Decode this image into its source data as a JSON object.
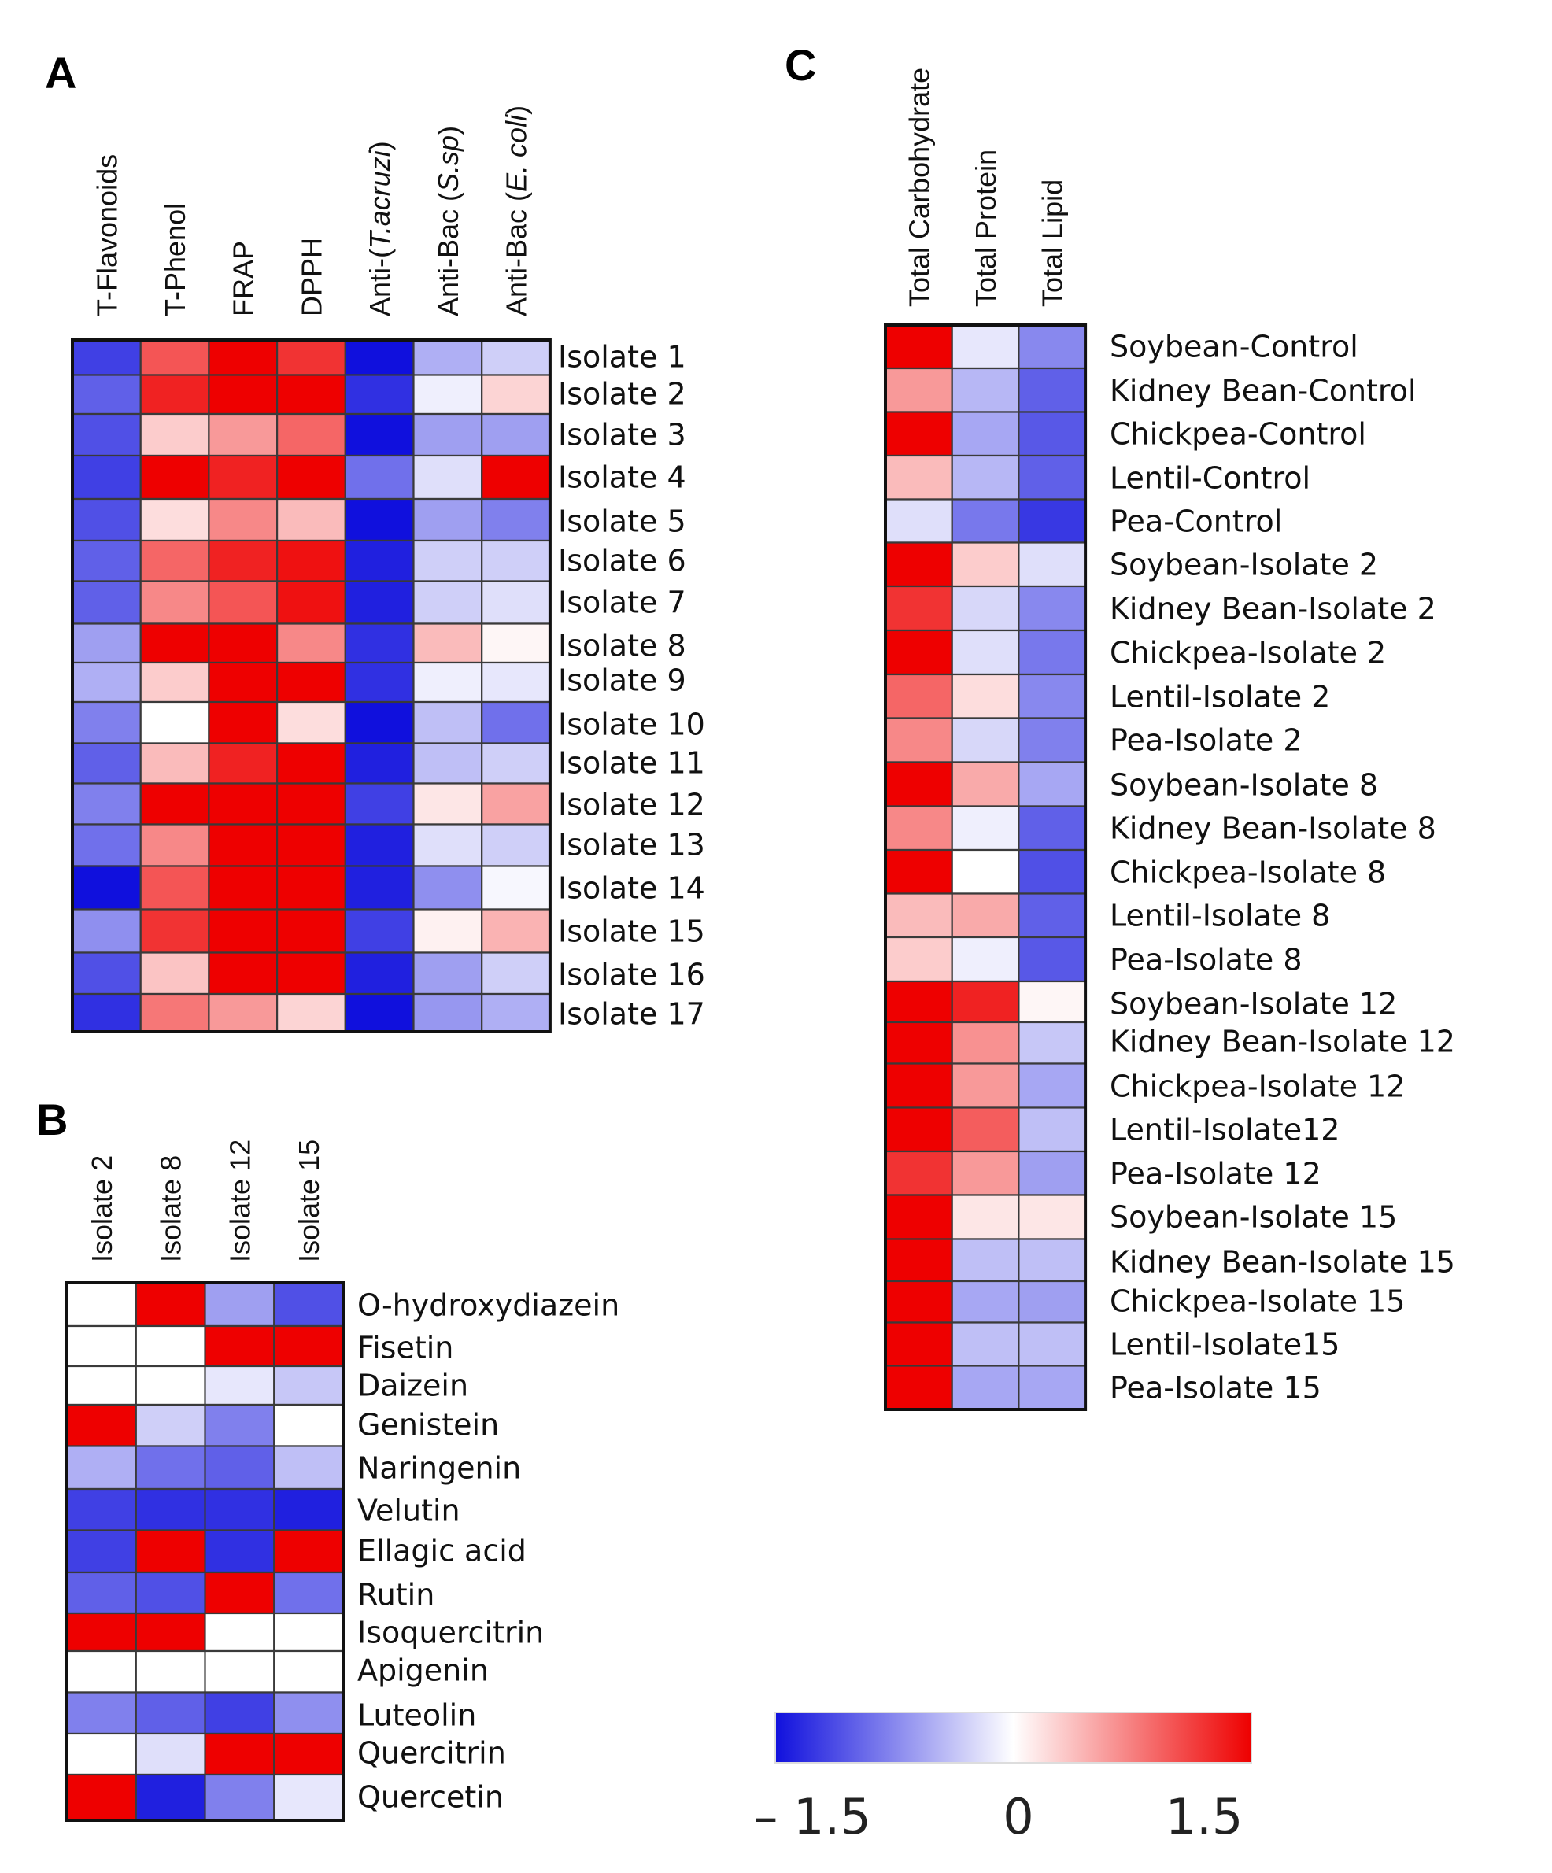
{
  "chart_data": [
    {
      "type": "heatmap",
      "panel": "A",
      "columns": [
        "T-Flavonoids",
        "T-Phenol",
        "FRAP",
        "DPPH",
        "Anti-(T.acruzi)",
        "Anti-Bac (S.sp)",
        "Anti-Bac (E. coli)"
      ],
      "column_labels_rich": [
        [
          {
            "t": "T-Flavonoids",
            "i": false
          }
        ],
        [
          {
            "t": "T-Phenol",
            "i": false
          }
        ],
        [
          {
            "t": "FRAP",
            "i": false
          }
        ],
        [
          {
            "t": "DPPH",
            "i": false
          }
        ],
        [
          {
            "t": "Anti-(",
            "i": false
          },
          {
            "t": "T.acruzi",
            "i": true
          },
          {
            "t": ")",
            "i": false
          }
        ],
        [
          {
            "t": "Anti-Bac (",
            "i": false
          },
          {
            "t": "S.sp",
            "i": true
          },
          {
            "t": ")",
            "i": false
          }
        ],
        [
          {
            "t": "Anti-Bac (",
            "i": false
          },
          {
            "t": "E. coli",
            "i": true
          },
          {
            "t": ")",
            "i": false
          }
        ]
      ],
      "rows": [
        "Isolate 1",
        "Isolate 2",
        "Isolate 3",
        "Isolate 4",
        "Isolate 5",
        "Isolate 6",
        "Isolate 7",
        "Isolate 8",
        "Isolate 9",
        "Isolate 10",
        "Isolate 11",
        "Isolate 12",
        "Isolate 13",
        "Isolate 14",
        "Isolate 15",
        "Isolate 16",
        "Isolate 17"
      ],
      "values": [
        [
          -1.2,
          1.0,
          1.5,
          1.2,
          -1.5,
          -0.5,
          -0.3
        ],
        [
          -1.0,
          1.3,
          1.5,
          1.5,
          -1.3,
          -0.1,
          0.25
        ],
        [
          -1.1,
          0.3,
          0.6,
          0.9,
          -1.5,
          -0.6,
          -0.6
        ],
        [
          -1.2,
          1.5,
          1.3,
          1.5,
          -0.9,
          -0.2,
          1.5
        ],
        [
          -1.1,
          0.2,
          0.7,
          0.4,
          -1.5,
          -0.6,
          -0.8
        ],
        [
          -1.0,
          0.9,
          1.3,
          1.4,
          -1.4,
          -0.3,
          -0.3
        ],
        [
          -1.0,
          0.7,
          1.0,
          1.4,
          -1.4,
          -0.3,
          -0.2
        ],
        [
          -0.6,
          1.5,
          1.5,
          0.7,
          -1.3,
          0.4,
          0.05
        ],
        [
          -0.5,
          0.3,
          1.5,
          1.5,
          -1.3,
          -0.1,
          -0.15
        ],
        [
          -0.8,
          0.0,
          1.5,
          0.2,
          -1.5,
          -0.4,
          -0.9
        ],
        [
          -1.0,
          0.4,
          1.3,
          1.5,
          -1.4,
          -0.4,
          -0.3
        ],
        [
          -0.8,
          1.5,
          1.5,
          1.5,
          -1.2,
          0.15,
          0.55
        ],
        [
          -0.9,
          0.7,
          1.5,
          1.5,
          -1.4,
          -0.2,
          -0.3
        ],
        [
          -1.5,
          1.0,
          1.5,
          1.5,
          -1.4,
          -0.7,
          -0.05
        ],
        [
          -0.7,
          1.2,
          1.5,
          1.5,
          -1.2,
          0.08,
          0.45
        ],
        [
          -1.1,
          0.35,
          1.5,
          1.5,
          -1.4,
          -0.6,
          -0.3
        ],
        [
          -1.3,
          0.8,
          0.6,
          0.25,
          -1.5,
          -0.65,
          -0.5
        ]
      ],
      "color_range": [
        -1.5,
        1.5
      ]
    },
    {
      "type": "heatmap",
      "panel": "B",
      "columns": [
        "Isolate 2",
        "Isolate 8",
        "Isolate 12",
        "Isolate 15"
      ],
      "rows": [
        "O-hydroxydiazein",
        "Fisetin",
        "Daizein",
        "Genistein",
        "Naringenin",
        "Velutin",
        "Ellagic acid",
        "Rutin",
        "Isoquercitrin",
        "Apigenin",
        "Luteolin",
        "Quercitrin",
        "Quercetin"
      ],
      "values": [
        [
          0.0,
          1.5,
          -0.6,
          -1.1
        ],
        [
          0.0,
          0.0,
          1.5,
          1.5
        ],
        [
          0.0,
          0.0,
          -0.15,
          -0.35
        ],
        [
          1.5,
          -0.3,
          -0.8,
          0.0
        ],
        [
          -0.5,
          -0.9,
          -1.0,
          -0.4
        ],
        [
          -1.2,
          -1.3,
          -1.3,
          -1.4
        ],
        [
          -1.2,
          1.5,
          -1.3,
          1.5
        ],
        [
          -1.0,
          -1.1,
          1.5,
          -0.9
        ],
        [
          1.5,
          1.5,
          0.0,
          0.0
        ],
        [
          0.0,
          0.0,
          0.0,
          0.0
        ],
        [
          -0.8,
          -1.0,
          -1.2,
          -0.7
        ],
        [
          0.0,
          -0.2,
          1.5,
          1.5
        ],
        [
          1.5,
          -1.4,
          -0.8,
          -0.15
        ]
      ],
      "color_range": [
        -1.5,
        1.5
      ]
    },
    {
      "type": "heatmap",
      "panel": "C",
      "columns": [
        "Total Carbohydrate",
        "Total Protein",
        "Total Lipid"
      ],
      "rows": [
        "Soybean-Control",
        "Kidney Bean-Control",
        "Chickpea-Control",
        "Lentil-Control",
        "Pea-Control",
        "Soybean-Isolate 2",
        "Kidney Bean-Isolate 2",
        "Chickpea-Isolate 2",
        "Lentil-Isolate 2",
        "Pea-Isolate 2",
        "Soybean-Isolate 8",
        "Kidney Bean-Isolate 8",
        "Chickpea-Isolate 8",
        "Lentil-Isolate 8",
        "Pea-Isolate 8",
        "Soybean-Isolate 12",
        "Kidney Bean-Isolate 12",
        "Chickpea-Isolate 12",
        "Lentil-Isolate12",
        "Pea-Isolate 12",
        "Soybean-Isolate 15",
        "Kidney Bean-Isolate 15",
        "Chickpea-Isolate 15",
        "Lentil-Isolate15",
        "Pea-Isolate 15"
      ],
      "values": [
        [
          1.5,
          -0.15,
          -0.75
        ],
        [
          0.6,
          -0.45,
          -1.0
        ],
        [
          1.5,
          -0.55,
          -1.05
        ],
        [
          0.4,
          -0.45,
          -1.0
        ],
        [
          -0.2,
          -0.85,
          -1.25
        ],
        [
          1.5,
          0.3,
          -0.2
        ],
        [
          1.2,
          -0.25,
          -0.75
        ],
        [
          1.5,
          -0.2,
          -0.85
        ],
        [
          0.9,
          0.2,
          -0.75
        ],
        [
          0.7,
          -0.25,
          -0.8
        ],
        [
          1.5,
          0.5,
          -0.55
        ],
        [
          0.7,
          -0.1,
          -1.0
        ],
        [
          1.5,
          0.0,
          -1.1
        ],
        [
          0.4,
          0.5,
          -1.0
        ],
        [
          0.3,
          -0.1,
          -1.05
        ],
        [
          1.5,
          1.3,
          0.05
        ],
        [
          1.5,
          0.65,
          -0.35
        ],
        [
          1.5,
          0.6,
          -0.55
        ],
        [
          1.5,
          0.95,
          -0.4
        ],
        [
          1.2,
          0.6,
          -0.6
        ],
        [
          1.5,
          0.15,
          0.15
        ],
        [
          1.5,
          -0.4,
          -0.4
        ],
        [
          1.5,
          -0.55,
          -0.6
        ],
        [
          1.5,
          -0.4,
          -0.4
        ],
        [
          1.5,
          -0.55,
          -0.55
        ]
      ],
      "color_range": [
        -1.5,
        1.5
      ]
    }
  ],
  "panel_letters": {
    "a": "A",
    "b": "B",
    "c": "C"
  },
  "colorbar": {
    "min_label": "– 1.5",
    "mid_label": "0",
    "max_label": "1.5",
    "colors": {
      "low": "#1010dd",
      "mid": "#ffffff",
      "high": "#ee0000"
    }
  }
}
